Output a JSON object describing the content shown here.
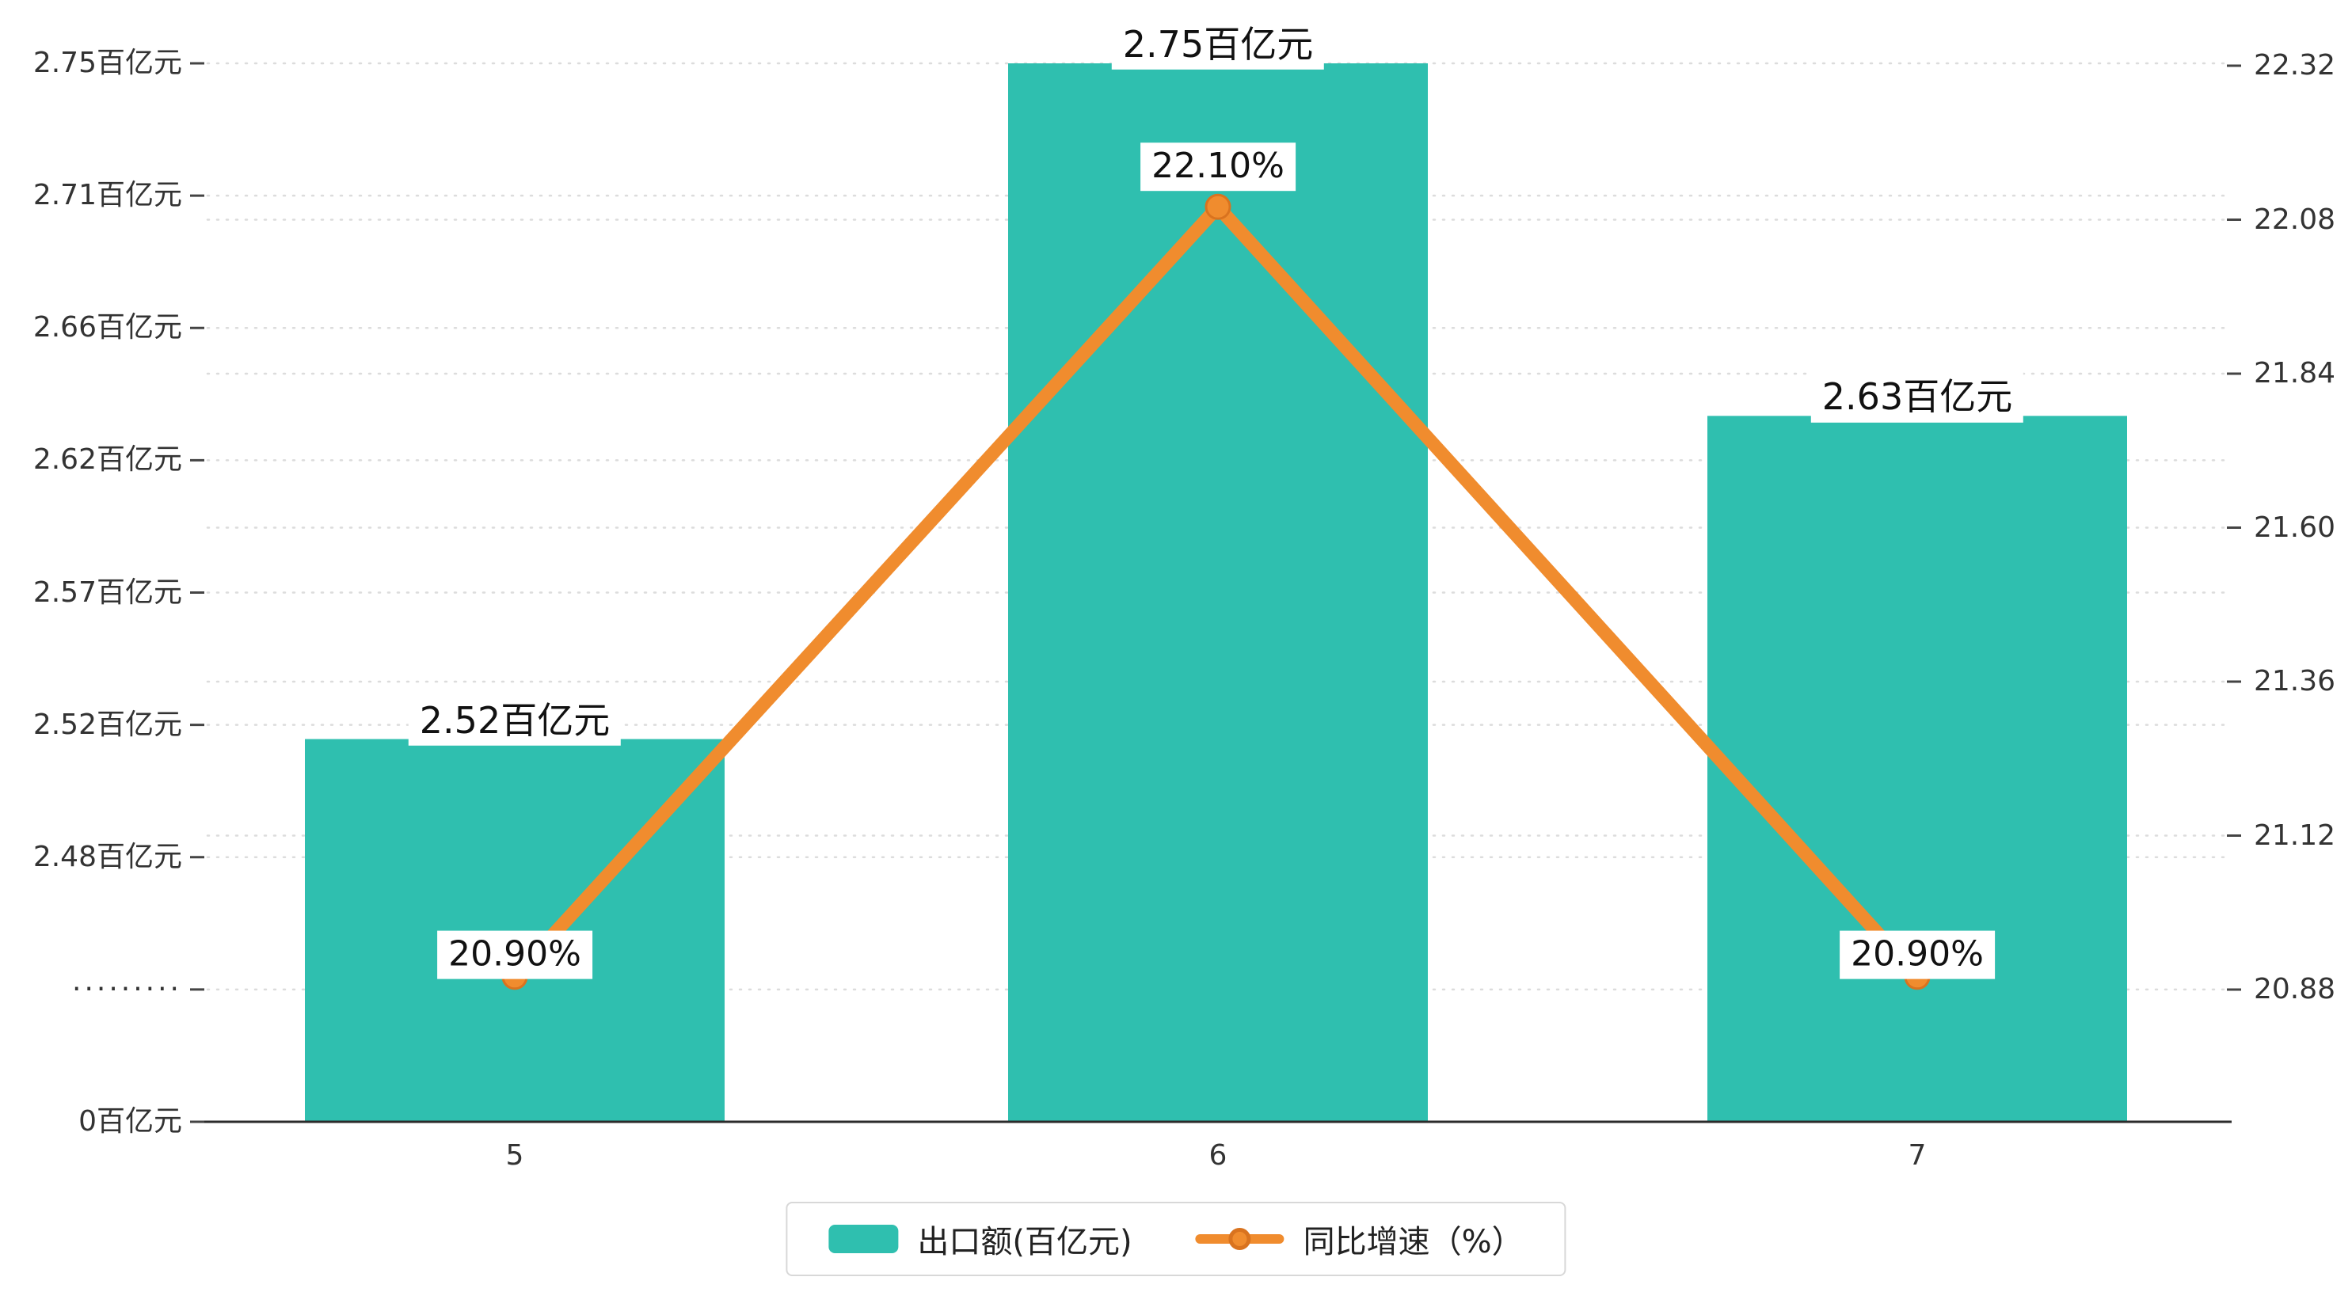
{
  "chart_data": {
    "type": "bar+line",
    "categories": [
      "5",
      "6",
      "7"
    ],
    "series": [
      {
        "name": "出口额(百亿元)",
        "type": "bar",
        "color": "#2FBFAF",
        "values": [
          2.52,
          2.75,
          2.63
        ],
        "labels": [
          "2.52百亿元",
          "2.75百亿元",
          "2.63百亿元"
        ]
      },
      {
        "name": "同比增速（%）",
        "type": "line",
        "color": "#F08C2E",
        "values": [
          20.9,
          22.1,
          20.9
        ],
        "labels": [
          "20.90%",
          "22.10%",
          "20.90%"
        ]
      }
    ],
    "left_axis": {
      "tick_labels": [
        "2.75百亿元",
        "2.71百亿元",
        "2.66百亿元",
        "2.62百亿元",
        "2.57百亿元",
        "2.52百亿元",
        "2.48百亿元",
        "·········",
        "0百亿元"
      ],
      "tick_values": [
        2.75,
        2.71,
        2.66,
        2.62,
        2.57,
        2.52,
        2.48,
        null,
        0
      ],
      "broken_axis": true
    },
    "right_axis": {
      "tick_labels": [
        "22.32",
        "22.08",
        "21.84",
        "21.60",
        "21.36",
        "21.12",
        "20.88"
      ],
      "min": 20.88,
      "max": 22.32
    },
    "legend": [
      {
        "label": "出口额(百亿元)",
        "swatch": "bar"
      },
      {
        "label": "同比增速（%）",
        "swatch": "line"
      }
    ],
    "grid": "dashed horizontal",
    "xlabel": "",
    "ylabel_left": "百亿元",
    "ylabel_right": "%"
  }
}
